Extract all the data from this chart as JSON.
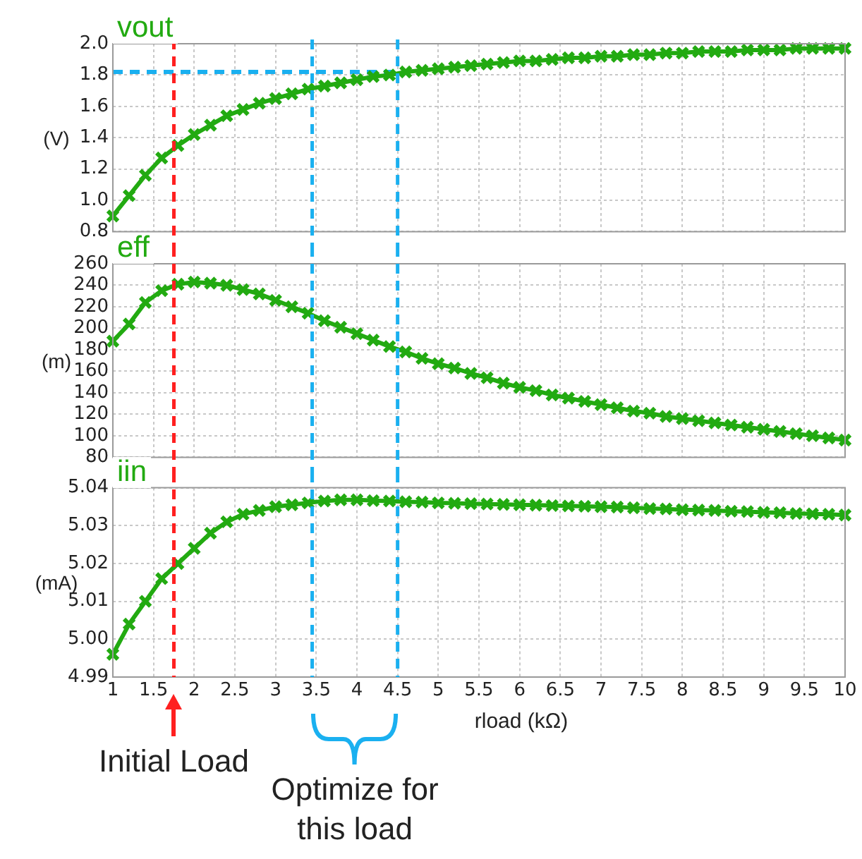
{
  "chart_data": [
    {
      "type": "line",
      "title": "vout",
      "ylabel": "(V)",
      "x": [
        1,
        1.2,
        1.4,
        1.6,
        1.8,
        2,
        2.2,
        2.4,
        2.6,
        2.8,
        3,
        3.2,
        3.4,
        3.6,
        3.8,
        4,
        4.2,
        4.4,
        4.6,
        4.8,
        5,
        5.2,
        5.4,
        5.6,
        5.8,
        6,
        6.2,
        6.4,
        6.6,
        6.8,
        7,
        7.2,
        7.4,
        7.6,
        7.8,
        8,
        8.2,
        8.4,
        8.6,
        8.8,
        9,
        9.2,
        9.4,
        9.6,
        9.8,
        10
      ],
      "series": [
        {
          "color": "#22aa11",
          "values": [
            0.9,
            1.03,
            1.16,
            1.27,
            1.35,
            1.42,
            1.48,
            1.54,
            1.58,
            1.62,
            1.65,
            1.68,
            1.71,
            1.73,
            1.75,
            1.77,
            1.79,
            1.8,
            1.82,
            1.83,
            1.84,
            1.85,
            1.86,
            1.87,
            1.88,
            1.89,
            1.89,
            1.9,
            1.91,
            1.91,
            1.92,
            1.92,
            1.93,
            1.93,
            1.94,
            1.94,
            1.95,
            1.95,
            1.95,
            1.96,
            1.96,
            1.96,
            1.97,
            1.97,
            1.97,
            1.97
          ]
        },
        {
          "color": "#1ab0f0",
          "x": [
            1,
            4.5
          ],
          "values": [
            1.82,
            1.82
          ],
          "marker": "none",
          "line_style": "dashed"
        }
      ],
      "xlim": [
        1,
        10
      ],
      "xticks": [
        1,
        1.5,
        2,
        2.5,
        3,
        3.5,
        4,
        4.5,
        5,
        5.5,
        6,
        6.5,
        7,
        7.5,
        8,
        8.5,
        9,
        9.5,
        10
      ],
      "ylim": [
        0.8,
        2.0
      ],
      "yticks": [
        0.8,
        {
          "value": 1,
          "label": "1.0"
        },
        1.2,
        1.4,
        1.6,
        1.8,
        {
          "value": 2,
          "label": "2.0"
        }
      ],
      "ref_lines": [
        {
          "axis": "x",
          "value": 1.75,
          "color": "#ff2020",
          "line_style": "dashed"
        },
        {
          "axis": "x",
          "value": 3.45,
          "color": "#1ab0f0",
          "line_style": "dashed"
        },
        {
          "axis": "x",
          "value": 4.5,
          "color": "#1ab0f0",
          "line_style": "dashed"
        }
      ],
      "grid": true,
      "marker": "cross",
      "line_style": "solid",
      "tick_labels": "y"
    },
    {
      "type": "line",
      "title": "eff",
      "ylabel": "(m)",
      "x": [
        1,
        1.2,
        1.4,
        1.6,
        1.8,
        2,
        2.2,
        2.4,
        2.6,
        2.8,
        3,
        3.2,
        3.4,
        3.6,
        3.8,
        4,
        4.2,
        4.4,
        4.6,
        4.8,
        5,
        5.2,
        5.4,
        5.6,
        5.8,
        6,
        6.2,
        6.4,
        6.6,
        6.8,
        7,
        7.2,
        7.4,
        7.6,
        7.8,
        8,
        8.2,
        8.4,
        8.6,
        8.8,
        9,
        9.2,
        9.4,
        9.6,
        9.8,
        10
      ],
      "series": [
        {
          "color": "#22aa11",
          "values": [
            188,
            204,
            224,
            235,
            241,
            243,
            242,
            240,
            236,
            232,
            226,
            220,
            214,
            207,
            201,
            195,
            189,
            183,
            178,
            172,
            167,
            163,
            158,
            154,
            149,
            145,
            142,
            138,
            135,
            132,
            129,
            126,
            123,
            121,
            118,
            116,
            114,
            112,
            110,
            108,
            106,
            104,
            102,
            100,
            98,
            96
          ]
        }
      ],
      "xlim": [
        1,
        10
      ],
      "xticks": [
        1,
        1.5,
        2,
        2.5,
        3,
        3.5,
        4,
        4.5,
        5,
        5.5,
        6,
        6.5,
        7,
        7.5,
        8,
        8.5,
        9,
        9.5,
        10
      ],
      "ylim": [
        80,
        260
      ],
      "yticks": [
        80,
        100,
        120,
        140,
        160,
        180,
        200,
        220,
        240,
        260
      ],
      "ref_lines": [
        {
          "axis": "x",
          "value": 1.75,
          "color": "#ff2020",
          "line_style": "dashed"
        },
        {
          "axis": "x",
          "value": 3.45,
          "color": "#1ab0f0",
          "line_style": "dashed"
        },
        {
          "axis": "x",
          "value": 4.5,
          "color": "#1ab0f0",
          "line_style": "dashed"
        }
      ],
      "grid": true,
      "marker": "cross",
      "line_style": "solid",
      "tick_labels": "y"
    },
    {
      "type": "line",
      "title": "iin",
      "ylabel": "(mA)",
      "xlabel": "rload (kΩ)",
      "x": [
        1,
        1.2,
        1.4,
        1.6,
        1.8,
        2,
        2.2,
        2.4,
        2.6,
        2.8,
        3,
        3.2,
        3.4,
        3.6,
        3.8,
        4,
        4.2,
        4.4,
        4.6,
        4.8,
        5,
        5.2,
        5.4,
        5.6,
        5.8,
        6,
        6.2,
        6.4,
        6.6,
        6.8,
        7,
        7.2,
        7.4,
        7.6,
        7.8,
        8,
        8.2,
        8.4,
        8.6,
        8.8,
        9,
        9.2,
        9.4,
        9.6,
        9.8,
        10
      ],
      "series": [
        {
          "color": "#22aa11",
          "values": [
            4.996,
            5.004,
            5.01,
            5.016,
            5.02,
            5.024,
            5.028,
            5.031,
            5.033,
            5.034,
            5.035,
            5.0355,
            5.036,
            5.0365,
            5.0368,
            5.0368,
            5.0366,
            5.0365,
            5.0363,
            5.0362,
            5.036,
            5.0359,
            5.0358,
            5.0357,
            5.0356,
            5.0355,
            5.0354,
            5.0353,
            5.0352,
            5.0351,
            5.035,
            5.0349,
            5.0347,
            5.0345,
            5.0344,
            5.0342,
            5.0341,
            5.034,
            5.0338,
            5.0337,
            5.0335,
            5.0334,
            5.0332,
            5.0331,
            5.033,
            5.0328
          ]
        }
      ],
      "xlim": [
        1,
        10
      ],
      "xticks": [
        1,
        1.5,
        2,
        2.5,
        3,
        3.5,
        4,
        4.5,
        5,
        5.5,
        6,
        6.5,
        7,
        7.5,
        8,
        8.5,
        9,
        9.5,
        10
      ],
      "ylim": [
        4.99,
        5.04
      ],
      "yticks": [
        4.99,
        {
          "value": 5,
          "label": "5.00"
        },
        5.01,
        5.02,
        5.03,
        5.04
      ],
      "ref_lines": [
        {
          "axis": "x",
          "value": 1.75,
          "color": "#ff2020",
          "line_style": "dashed",
          "label": "Initial Load"
        },
        {
          "axis": "x",
          "value": 3.45,
          "color": "#1ab0f0",
          "line_style": "dashed"
        },
        {
          "axis": "x",
          "value": 4.5,
          "color": "#1ab0f0",
          "line_style": "dashed"
        }
      ],
      "annotations": [
        "Optimize for this load"
      ],
      "grid": true,
      "marker": "cross",
      "line_style": "solid"
    }
  ]
}
